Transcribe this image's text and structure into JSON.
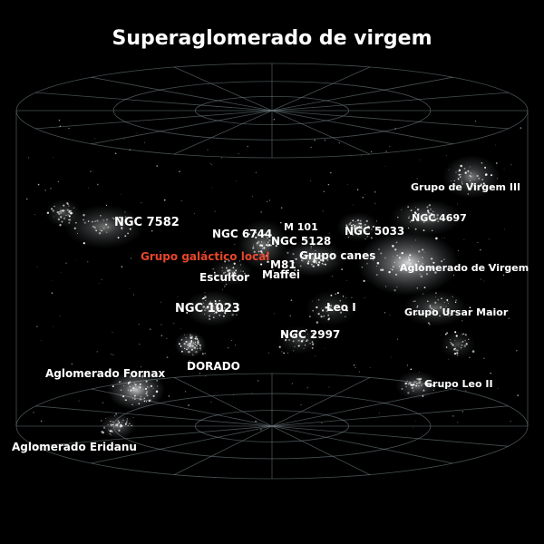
{
  "title": "Superaglomerado de virgem",
  "colors": {
    "background": "#000000",
    "label": "#ffffff",
    "highlight": "#e8452c",
    "grid": "#8a9aa0"
  },
  "labels": {
    "ngc7582": "NGC 7582",
    "ngc6744": "NGC 6744",
    "m101": "M 101",
    "ngc5128": "NGC 5128",
    "ngc5033": "NGC 5033",
    "ngc4697": "NGC 4697",
    "grupo_virgem_iii": "Grupo de Virgem III",
    "grupo_local": "Grupo galáctico local",
    "grupo_canes": "Grupo canes",
    "aglomerado_virgem": "Aglomerado de Virgem",
    "m81": "M81",
    "escultor": "Escultor",
    "maffei": "Maffei",
    "ngc1023": "NGC 1023",
    "leo_i": "Leo I",
    "grupo_ursar_maior": "Grupo Ursar Maior",
    "ngc2997": "NGC 2997",
    "dorado": "DORADO",
    "aglomerado_fornax": "Aglomerado Fornax",
    "grupo_leo_ii": "Grupo Leo II",
    "aglomerado_eridanu": "Aglomerado Eridanu"
  }
}
